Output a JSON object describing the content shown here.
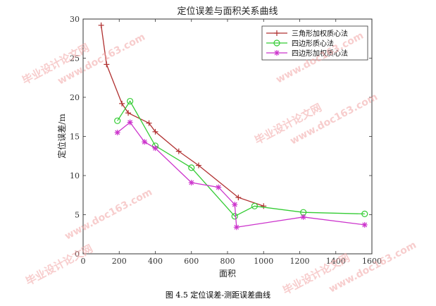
{
  "chart_data": {
    "type": "line",
    "title": "定位误差与面积关系曲线",
    "xlabel": "面积",
    "ylabel": "定位误差/m",
    "xlim": [
      0,
      1600
    ],
    "ylim": [
      0,
      30
    ],
    "xticks": [
      0,
      200,
      400,
      600,
      800,
      1000,
      1200,
      1400,
      1600
    ],
    "yticks": [
      0,
      5,
      10,
      15,
      20,
      25,
      30
    ],
    "grid": false,
    "legend_position": "top-right",
    "series": [
      {
        "name": "三角形加权质心法",
        "color": "#b03030",
        "marker": "plus",
        "x": [
          100,
          130,
          215,
          250,
          365,
          400,
          530,
          640,
          860,
          1000
        ],
        "y": [
          29.2,
          24.2,
          19.2,
          18.0,
          16.7,
          15.6,
          13.1,
          11.3,
          7.2,
          6.1
        ]
      },
      {
        "name": "四边形质心法",
        "color": "#33cc33",
        "marker": "circle",
        "x": [
          190,
          260,
          400,
          600,
          840,
          950,
          1220,
          1560
        ],
        "y": [
          17.0,
          19.5,
          13.8,
          11.0,
          4.8,
          6.1,
          5.3,
          5.1
        ]
      },
      {
        "name": "四边形加权质心法",
        "color": "#cc33cc",
        "marker": "star",
        "x": [
          190,
          260,
          340,
          400,
          600,
          750,
          840,
          850,
          1220,
          1560
        ],
        "y": [
          15.5,
          16.8,
          14.3,
          13.5,
          9.1,
          8.5,
          6.3,
          3.4,
          4.7,
          3.7
        ]
      }
    ]
  },
  "caption": "图 4.5  定位误差-测距误差曲线",
  "watermark": {
    "text_cn": "毕业设计论文网",
    "text_url": "www.doc163.com"
  }
}
